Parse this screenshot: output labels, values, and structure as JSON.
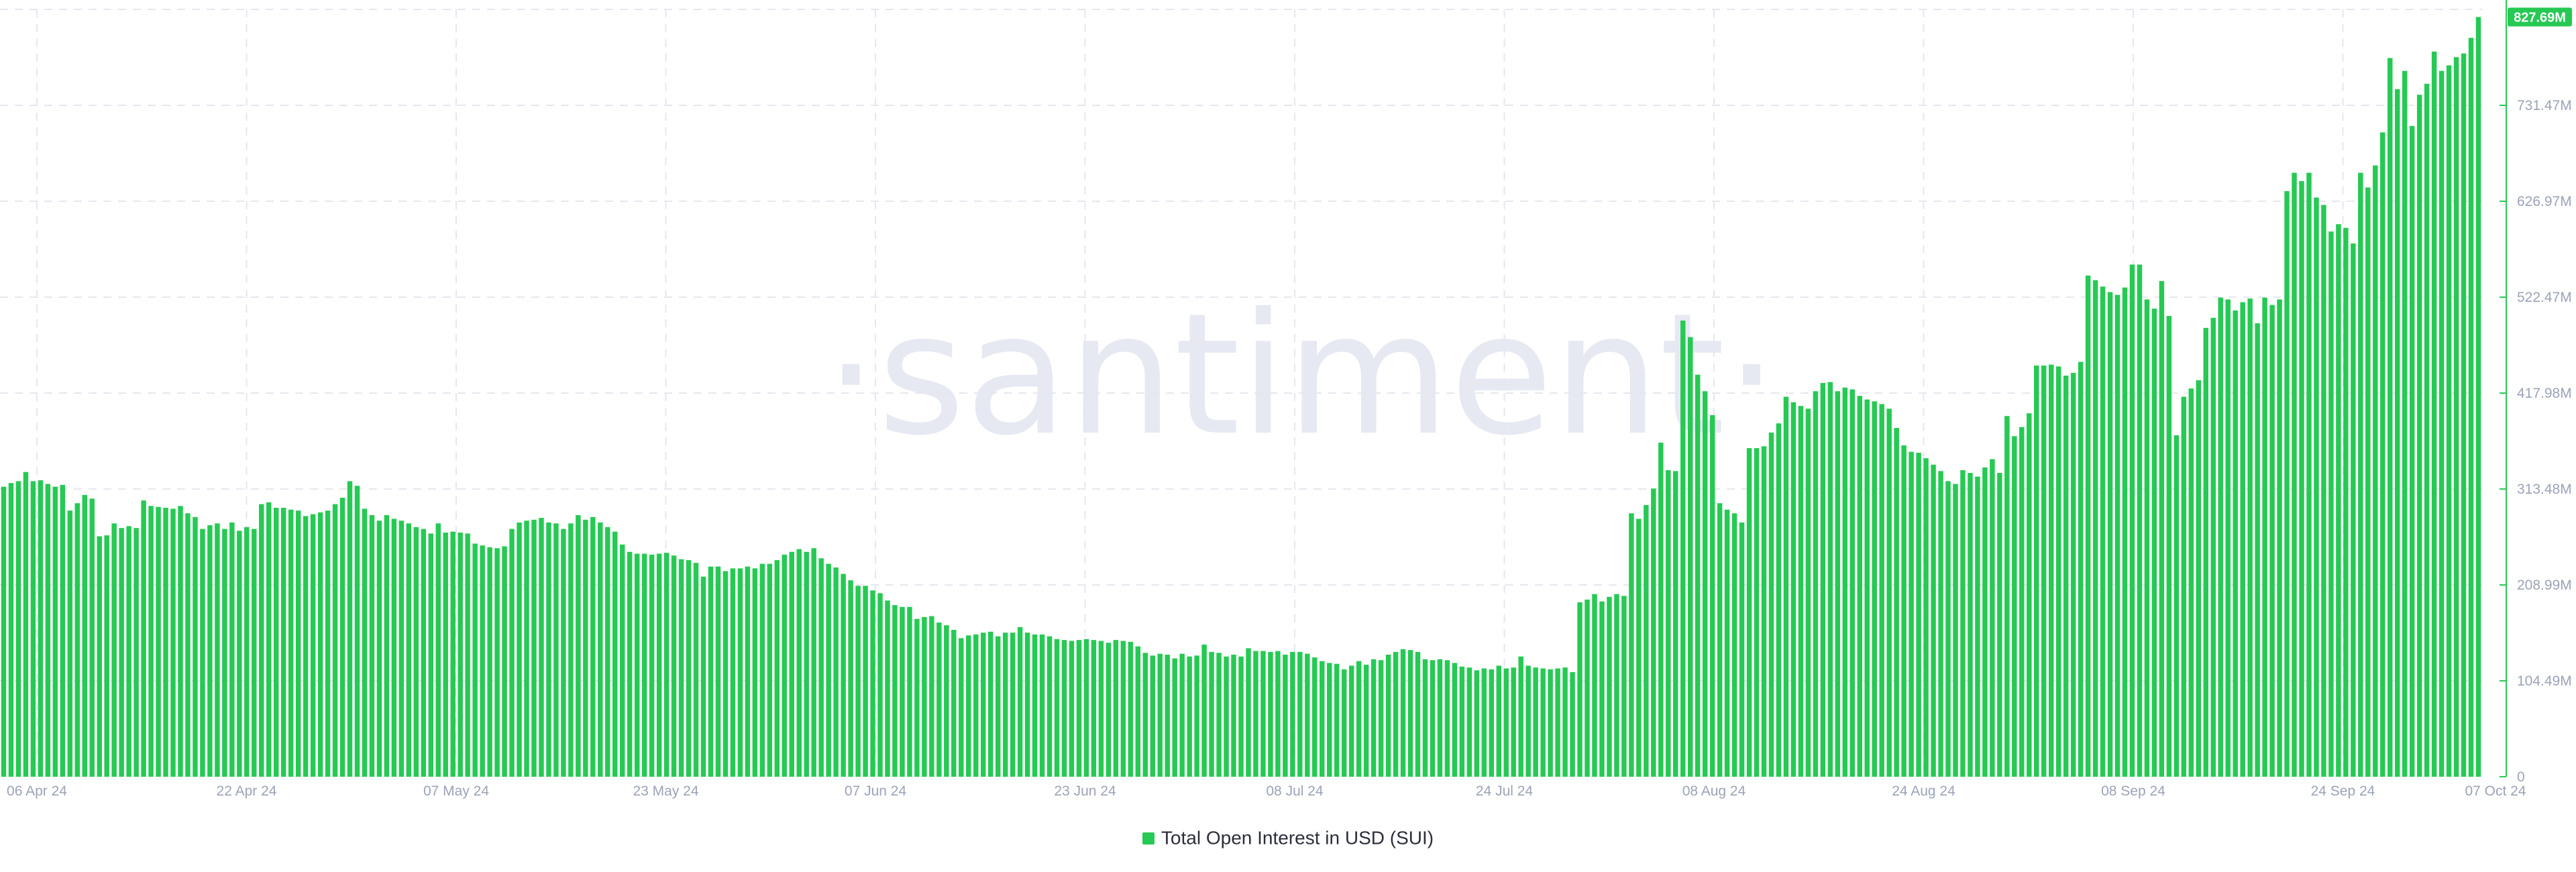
{
  "watermark": "·santiment·",
  "legend": {
    "label": "Total Open Interest in USD (SUI)"
  },
  "colors": {
    "bar": "#26c953",
    "axis_line": "#26c953",
    "grid": "#e4e7ef",
    "tick_text": "#9aa3b8",
    "watermark": "#e6e9f2"
  },
  "chart_data": {
    "type": "bar",
    "series": [
      {
        "name": "Total Open Interest in USD (SUI)",
        "unit": "USD"
      }
    ],
    "x_tick_labels": [
      "06 Apr 24",
      "22 Apr 24",
      "07 May 24",
      "23 May 24",
      "07 Jun 24",
      "23 Jun 24",
      "08 Jul 24",
      "24 Jul 24",
      "08 Aug 24",
      "24 Aug 24",
      "08 Sep 24",
      "24 Sep 24",
      "07 Oct 24"
    ],
    "y_tick_labels": [
      "0",
      "104.49M",
      "208.99M",
      "313.48M",
      "417.98M",
      "522.47M",
      "626.97M",
      "731.47M"
    ],
    "y_ticks": [
      0,
      104.49,
      208.99,
      313.48,
      417.98,
      522.47,
      626.97,
      731.47
    ],
    "ylim": [
      0,
      836
    ],
    "y_unit": "M USD",
    "last_value_label": "827.69M",
    "values": [
      316,
      320,
      322,
      332,
      322,
      323,
      319,
      316,
      318,
      290,
      298,
      307,
      303,
      262,
      263,
      276,
      271,
      273,
      271,
      301,
      295,
      294,
      293,
      292,
      295,
      287,
      283,
      270,
      274,
      276,
      270,
      277,
      268,
      272,
      270,
      297,
      299,
      293,
      293,
      291,
      290,
      284,
      286,
      288,
      290,
      297,
      304,
      322,
      317,
      292,
      285,
      279,
      285,
      281,
      279,
      276,
      272,
      270,
      265,
      276,
      266,
      267,
      266,
      265,
      254,
      252,
      250,
      249,
      251,
      270,
      277,
      279,
      280,
      282,
      277,
      276,
      270,
      276,
      285,
      280,
      283,
      277,
      272,
      267,
      253,
      245,
      243,
      243,
      242,
      243,
      244,
      241,
      237,
      236,
      233,
      218,
      229,
      229,
      224,
      227,
      227,
      229,
      227,
      232,
      232,
      236,
      242,
      245,
      248,
      245,
      249,
      238,
      232,
      228,
      221,
      214,
      208,
      208,
      203,
      200,
      192,
      187,
      185,
      185,
      172,
      174,
      175,
      168,
      165,
      160,
      151,
      154,
      155,
      157,
      158,
      153,
      157,
      157,
      163,
      157,
      155,
      155,
      153,
      150,
      149,
      148,
      149,
      150,
      149,
      148,
      146,
      149,
      148,
      147,
      142,
      135,
      132,
      134,
      133,
      129,
      134,
      131,
      132,
      144,
      136,
      135,
      131,
      133,
      131,
      140,
      137,
      137,
      136,
      137,
      133,
      136,
      136,
      134,
      130,
      126,
      124,
      123,
      117,
      121,
      126,
      122,
      128,
      127,
      133,
      136,
      139,
      138,
      136,
      128,
      127,
      128,
      127,
      124,
      120,
      119,
      116,
      118,
      117,
      121,
      118,
      119,
      131,
      121,
      119,
      118,
      117,
      118,
      119,
      114,
      190,
      193,
      199,
      191,
      196,
      199,
      197,
      287,
      281,
      296,
      314,
      364,
      334,
      333,
      497,
      479,
      438,
      420,
      394,
      298,
      291,
      287,
      277,
      358,
      358,
      360,
      375,
      385,
      414,
      408,
      404,
      401,
      420,
      429,
      430,
      420,
      424,
      422,
      415,
      411,
      409,
      406,
      401,
      380,
      361,
      354,
      353,
      347,
      340,
      333,
      322,
      319,
      334,
      331,
      327,
      337,
      346,
      331,
      393,
      371,
      381,
      396,
      448,
      448,
      449,
      447,
      437,
      440,
      452,
      546,
      541,
      534,
      528,
      525,
      533,
      558,
      558,
      520,
      510,
      540,
      502,
      372,
      414,
      423,
      432,
      489,
      500,
      522,
      520,
      508,
      517,
      521,
      494,
      522,
      514,
      520,
      638,
      658,
      649,
      658,
      631,
      623,
      594,
      602,
      598,
      581,
      658,
      642,
      666,
      702,
      783,
      749,
      769,
      709,
      743,
      755,
      790,
      769,
      775,
      784,
      788,
      805,
      827.69
    ]
  }
}
